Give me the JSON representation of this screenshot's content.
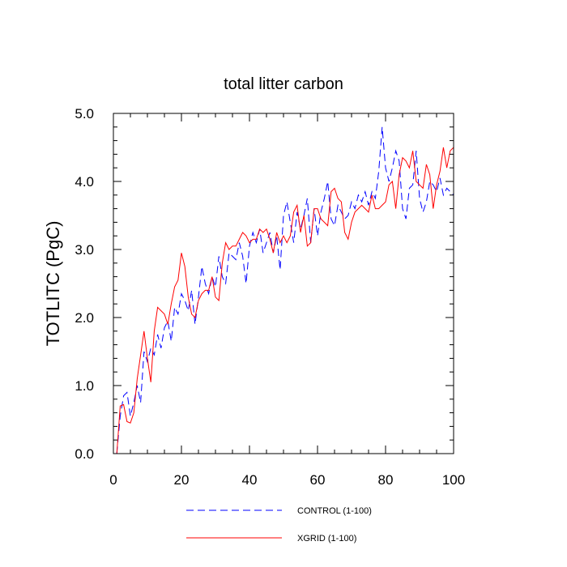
{
  "chart_data": {
    "type": "line",
    "title": "total litter carbon",
    "xlabel": "",
    "ylabel": "TOTLITC  (PgC)",
    "xlim": [
      0,
      100
    ],
    "ylim": [
      0,
      5
    ],
    "x_ticks": [
      0,
      20,
      40,
      60,
      80,
      100
    ],
    "x_tick_labels": [
      "0",
      "20",
      "40",
      "60",
      "80",
      "100"
    ],
    "y_ticks": [
      0,
      1,
      2,
      3,
      4,
      5
    ],
    "y_tick_labels": [
      "0.0",
      "1.0",
      "2.0",
      "3.0",
      "4.0",
      "5.0"
    ],
    "grid": false,
    "legend_position": "bottom",
    "series": [
      {
        "name": "CONTROL (1-100)",
        "color": "#0000ff",
        "dash": "dashed",
        "x": [
          1,
          2,
          3,
          4,
          5,
          6,
          7,
          8,
          9,
          10,
          11,
          12,
          13,
          14,
          15,
          16,
          17,
          18,
          19,
          20,
          21,
          22,
          23,
          24,
          25,
          26,
          27,
          28,
          29,
          30,
          31,
          32,
          33,
          34,
          35,
          36,
          37,
          38,
          39,
          40,
          41,
          42,
          43,
          44,
          45,
          46,
          47,
          48,
          49,
          50,
          51,
          52,
          53,
          54,
          55,
          56,
          57,
          58,
          59,
          60,
          61,
          62,
          63,
          64,
          65,
          66,
          67,
          68,
          69,
          70,
          71,
          72,
          73,
          74,
          75,
          76,
          77,
          78,
          79,
          80,
          81,
          82,
          83,
          84,
          85,
          86,
          87,
          88,
          89,
          90,
          91,
          92,
          93,
          94,
          95,
          96,
          97,
          98,
          99,
          100
        ],
        "values": [
          0.0,
          0.55,
          0.85,
          0.9,
          0.55,
          0.75,
          1.0,
          0.75,
          1.5,
          1.35,
          1.55,
          1.45,
          1.75,
          1.55,
          1.85,
          1.95,
          1.65,
          2.15,
          2.05,
          2.35,
          2.25,
          2.1,
          2.4,
          1.9,
          2.3,
          2.75,
          2.5,
          2.35,
          2.6,
          2.45,
          2.9,
          2.6,
          2.5,
          2.95,
          2.9,
          2.85,
          3.1,
          2.9,
          2.5,
          3.05,
          3.25,
          3.1,
          3.3,
          2.95,
          3.1,
          3.25,
          2.95,
          3.2,
          2.7,
          3.5,
          3.7,
          3.4,
          3.1,
          3.55,
          3.3,
          3.5,
          3.75,
          3.1,
          3.6,
          3.2,
          3.55,
          3.75,
          4.0,
          3.45,
          3.35,
          3.65,
          3.55,
          3.45,
          3.5,
          3.7,
          3.6,
          3.8,
          3.7,
          3.85,
          3.65,
          3.85,
          3.75,
          4.15,
          4.8,
          4.2,
          4.0,
          4.2,
          4.45,
          4.3,
          3.6,
          3.45,
          3.9,
          3.95,
          4.45,
          3.75,
          3.55,
          3.7,
          4.0,
          3.95,
          3.85,
          4.05,
          3.8,
          3.9,
          3.85,
          3.8
        ]
      },
      {
        "name": "XGRID (1-100)",
        "color": "#ff0000",
        "dash": "solid",
        "x": [
          1,
          2,
          3,
          4,
          5,
          6,
          7,
          8,
          9,
          10,
          11,
          12,
          13,
          14,
          15,
          16,
          17,
          18,
          19,
          20,
          21,
          22,
          23,
          24,
          25,
          26,
          27,
          28,
          29,
          30,
          31,
          32,
          33,
          34,
          35,
          36,
          37,
          38,
          39,
          40,
          41,
          42,
          43,
          44,
          45,
          46,
          47,
          48,
          49,
          50,
          51,
          52,
          53,
          54,
          55,
          56,
          57,
          58,
          59,
          60,
          61,
          62,
          63,
          64,
          65,
          66,
          67,
          68,
          69,
          70,
          71,
          72,
          73,
          74,
          75,
          76,
          77,
          78,
          79,
          80,
          81,
          82,
          83,
          84,
          85,
          86,
          87,
          88,
          89,
          90,
          91,
          92,
          93,
          94,
          95,
          96,
          97,
          98,
          99,
          100
        ],
        "values": [
          0.0,
          0.7,
          0.72,
          0.47,
          0.45,
          0.6,
          1.1,
          1.45,
          1.8,
          1.4,
          1.05,
          1.8,
          2.15,
          2.1,
          2.05,
          1.9,
          2.2,
          2.45,
          2.55,
          2.95,
          2.75,
          2.3,
          2.05,
          2.0,
          2.25,
          2.35,
          2.4,
          2.4,
          2.6,
          2.3,
          2.25,
          2.8,
          3.1,
          3.0,
          3.05,
          3.05,
          3.15,
          3.25,
          3.2,
          3.1,
          3.15,
          3.15,
          3.3,
          3.25,
          3.3,
          3.15,
          2.95,
          3.25,
          3.1,
          3.2,
          3.1,
          3.2,
          3.55,
          3.65,
          3.25,
          3.5,
          3.05,
          3.1,
          3.6,
          3.6,
          3.45,
          3.4,
          3.35,
          3.85,
          3.9,
          3.75,
          3.7,
          3.25,
          3.15,
          3.4,
          3.55,
          3.6,
          3.65,
          3.6,
          3.55,
          3.8,
          3.6,
          3.6,
          3.65,
          3.7,
          3.95,
          4.0,
          3.6,
          4.1,
          4.35,
          4.3,
          4.2,
          4.45,
          4.0,
          3.95,
          3.9,
          4.25,
          4.1,
          3.6,
          3.95,
          4.15,
          4.5,
          4.2,
          4.45,
          4.5
        ]
      }
    ]
  }
}
